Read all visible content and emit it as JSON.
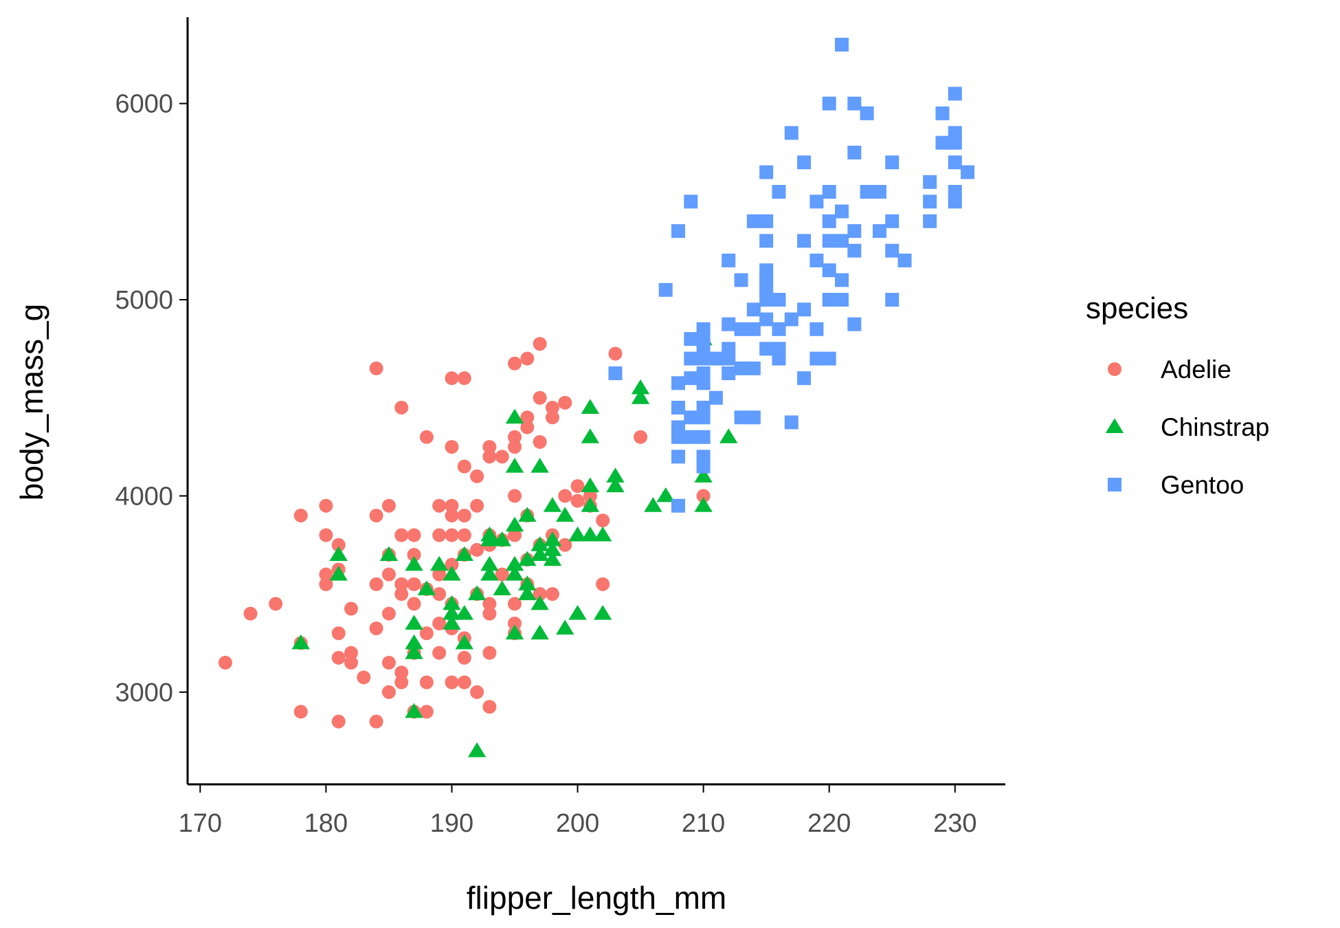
{
  "chart_data": {
    "type": "scatter",
    "xlabel": "flipper_length_mm",
    "ylabel": "body_mass_g",
    "xlim": [
      169,
      234
    ],
    "ylim": [
      2530,
      6440
    ],
    "xticks": [
      170,
      180,
      190,
      200,
      210,
      220,
      230
    ],
    "yticks": [
      3000,
      4000,
      5000,
      6000
    ],
    "grid": false,
    "legend": {
      "title": "species",
      "placement": "right"
    },
    "series": [
      {
        "name": "Adelie",
        "marker": "circle",
        "color": "#F8766D",
        "points": [
          [
            172,
            3150
          ],
          [
            174,
            3400
          ],
          [
            176,
            3450
          ],
          [
            178,
            3900
          ],
          [
            178,
            3250
          ],
          [
            178,
            2900
          ],
          [
            180,
            3950
          ],
          [
            180,
            3800
          ],
          [
            180,
            3600
          ],
          [
            180,
            3550
          ],
          [
            181,
            3750
          ],
          [
            181,
            3625
          ],
          [
            181,
            3300
          ],
          [
            181,
            3175
          ],
          [
            181,
            2850
          ],
          [
            182,
            3425
          ],
          [
            182,
            3200
          ],
          [
            182,
            3150
          ],
          [
            183,
            3075
          ],
          [
            184,
            4650
          ],
          [
            184,
            3900
          ],
          [
            184,
            3550
          ],
          [
            184,
            3325
          ],
          [
            184,
            2850
          ],
          [
            185,
            3950
          ],
          [
            185,
            3700
          ],
          [
            185,
            3600
          ],
          [
            185,
            3400
          ],
          [
            185,
            3150
          ],
          [
            185,
            3000
          ],
          [
            186,
            4450
          ],
          [
            186,
            3800
          ],
          [
            186,
            3500
          ],
          [
            186,
            3550
          ],
          [
            186,
            3100
          ],
          [
            186,
            3050
          ],
          [
            187,
            3800
          ],
          [
            187,
            3700
          ],
          [
            187,
            3550
          ],
          [
            187,
            3450
          ],
          [
            187,
            3200
          ],
          [
            187,
            2900
          ],
          [
            188,
            4300
          ],
          [
            188,
            3525
          ],
          [
            188,
            3300
          ],
          [
            188,
            3050
          ],
          [
            188,
            2900
          ],
          [
            189,
            3950
          ],
          [
            189,
            3800
          ],
          [
            189,
            3600
          ],
          [
            189,
            3500
          ],
          [
            189,
            3350
          ],
          [
            189,
            3200
          ],
          [
            190,
            4600
          ],
          [
            190,
            4250
          ],
          [
            190,
            3950
          ],
          [
            190,
            3900
          ],
          [
            190,
            3800
          ],
          [
            190,
            3650
          ],
          [
            190,
            3450
          ],
          [
            190,
            3325
          ],
          [
            190,
            3050
          ],
          [
            191,
            4600
          ],
          [
            191,
            4150
          ],
          [
            191,
            3900
          ],
          [
            191,
            3800
          ],
          [
            191,
            3700
          ],
          [
            191,
            3275
          ],
          [
            191,
            3175
          ],
          [
            191,
            3050
          ],
          [
            192,
            4100
          ],
          [
            192,
            3950
          ],
          [
            192,
            3725
          ],
          [
            192,
            3500
          ],
          [
            192,
            3000
          ],
          [
            193,
            4250
          ],
          [
            193,
            4200
          ],
          [
            193,
            3800
          ],
          [
            193,
            3750
          ],
          [
            193,
            3450
          ],
          [
            193,
            3400
          ],
          [
            193,
            3200
          ],
          [
            193,
            2925
          ],
          [
            194,
            4200
          ],
          [
            194,
            3775
          ],
          [
            194,
            3600
          ],
          [
            195,
            4675
          ],
          [
            195,
            4300
          ],
          [
            195,
            4250
          ],
          [
            195,
            4000
          ],
          [
            195,
            3800
          ],
          [
            195,
            3450
          ],
          [
            195,
            3350
          ],
          [
            195,
            3300
          ],
          [
            196,
            4700
          ],
          [
            196,
            4400
          ],
          [
            196,
            4350
          ],
          [
            196,
            3900
          ],
          [
            196,
            3675
          ],
          [
            196,
            3550
          ],
          [
            197,
            4775
          ],
          [
            197,
            4500
          ],
          [
            197,
            4275
          ],
          [
            197,
            3750
          ],
          [
            197,
            3500
          ],
          [
            198,
            4450
          ],
          [
            198,
            4400
          ],
          [
            198,
            3800
          ],
          [
            198,
            3500
          ],
          [
            199,
            4475
          ],
          [
            199,
            4000
          ],
          [
            199,
            3750
          ],
          [
            200,
            4050
          ],
          [
            200,
            3975
          ],
          [
            201,
            4000
          ],
          [
            201,
            3950
          ],
          [
            202,
            3875
          ],
          [
            202,
            3550
          ],
          [
            203,
            4725
          ],
          [
            205,
            4300
          ],
          [
            210,
            4000
          ]
        ]
      },
      {
        "name": "Chinstrap",
        "marker": "triangle",
        "color": "#00BA38",
        "points": [
          [
            178,
            3250
          ],
          [
            181,
            3700
          ],
          [
            181,
            3600
          ],
          [
            185,
            3700
          ],
          [
            187,
            3650
          ],
          [
            187,
            3350
          ],
          [
            187,
            3250
          ],
          [
            187,
            3200
          ],
          [
            187,
            2900
          ],
          [
            188,
            3525
          ],
          [
            189,
            3650
          ],
          [
            190,
            3600
          ],
          [
            190,
            3450
          ],
          [
            190,
            3400
          ],
          [
            190,
            3350
          ],
          [
            191,
            3700
          ],
          [
            191,
            3400
          ],
          [
            191,
            3250
          ],
          [
            192,
            3500
          ],
          [
            192,
            2700
          ],
          [
            193,
            3800
          ],
          [
            193,
            3775
          ],
          [
            193,
            3650
          ],
          [
            193,
            3600
          ],
          [
            194,
            3775
          ],
          [
            194,
            3525
          ],
          [
            195,
            4400
          ],
          [
            195,
            4150
          ],
          [
            195,
            3850
          ],
          [
            195,
            3650
          ],
          [
            195,
            3600
          ],
          [
            195,
            3300
          ],
          [
            196,
            3900
          ],
          [
            196,
            3675
          ],
          [
            196,
            3550
          ],
          [
            196,
            3500
          ],
          [
            197,
            4150
          ],
          [
            197,
            3750
          ],
          [
            197,
            3700
          ],
          [
            197,
            3450
          ],
          [
            197,
            3300
          ],
          [
            198,
            3950
          ],
          [
            198,
            3775
          ],
          [
            198,
            3725
          ],
          [
            198,
            3675
          ],
          [
            199,
            3900
          ],
          [
            199,
            3325
          ],
          [
            200,
            3800
          ],
          [
            200,
            3400
          ],
          [
            201,
            4450
          ],
          [
            201,
            4300
          ],
          [
            201,
            4050
          ],
          [
            201,
            3950
          ],
          [
            201,
            3800
          ],
          [
            202,
            3800
          ],
          [
            202,
            3400
          ],
          [
            203,
            4100
          ],
          [
            203,
            4050
          ],
          [
            205,
            4550
          ],
          [
            205,
            4500
          ],
          [
            206,
            3950
          ],
          [
            207,
            4000
          ],
          [
            210,
            4800
          ],
          [
            210,
            4100
          ],
          [
            210,
            3950
          ],
          [
            212,
            4300
          ]
        ]
      },
      {
        "name": "Gentoo",
        "marker": "square",
        "color": "#619CFF",
        "points": [
          [
            203,
            4625
          ],
          [
            207,
            5050
          ],
          [
            208,
            5350
          ],
          [
            208,
            4575
          ],
          [
            208,
            4450
          ],
          [
            208,
            4350
          ],
          [
            208,
            4300
          ],
          [
            208,
            4200
          ],
          [
            208,
            3950
          ],
          [
            209,
            5500
          ],
          [
            209,
            4800
          ],
          [
            209,
            4700
          ],
          [
            209,
            4600
          ],
          [
            209,
            4400
          ],
          [
            209,
            4300
          ],
          [
            210,
            4850
          ],
          [
            210,
            4800
          ],
          [
            210,
            4750
          ],
          [
            210,
            4700
          ],
          [
            210,
            4625
          ],
          [
            210,
            4575
          ],
          [
            210,
            4450
          ],
          [
            210,
            4400
          ],
          [
            210,
            4300
          ],
          [
            210,
            4200
          ],
          [
            210,
            4150
          ],
          [
            211,
            4700
          ],
          [
            211,
            4500
          ],
          [
            212,
            5200
          ],
          [
            212,
            4875
          ],
          [
            212,
            4750
          ],
          [
            212,
            4700
          ],
          [
            212,
            4625
          ],
          [
            213,
            5100
          ],
          [
            213,
            4850
          ],
          [
            213,
            4650
          ],
          [
            213,
            4400
          ],
          [
            214,
            5400
          ],
          [
            214,
            4950
          ],
          [
            214,
            4850
          ],
          [
            214,
            4650
          ],
          [
            214,
            4400
          ],
          [
            215,
            5650
          ],
          [
            215,
            5400
          ],
          [
            215,
            5300
          ],
          [
            215,
            5150
          ],
          [
            215,
            5100
          ],
          [
            215,
            5050
          ],
          [
            215,
            5000
          ],
          [
            215,
            4900
          ],
          [
            215,
            4750
          ],
          [
            216,
            5550
          ],
          [
            216,
            5000
          ],
          [
            216,
            4850
          ],
          [
            216,
            4750
          ],
          [
            216,
            4700
          ],
          [
            217,
            5850
          ],
          [
            217,
            4900
          ],
          [
            217,
            4375
          ],
          [
            218,
            5700
          ],
          [
            218,
            5300
          ],
          [
            218,
            4950
          ],
          [
            218,
            4600
          ],
          [
            219,
            5500
          ],
          [
            219,
            5200
          ],
          [
            219,
            4850
          ],
          [
            219,
            4700
          ],
          [
            220,
            6000
          ],
          [
            220,
            5550
          ],
          [
            220,
            5400
          ],
          [
            220,
            5300
          ],
          [
            220,
            5150
          ],
          [
            220,
            5000
          ],
          [
            220,
            4700
          ],
          [
            221,
            6300
          ],
          [
            221,
            5450
          ],
          [
            221,
            5300
          ],
          [
            221,
            5100
          ],
          [
            221,
            5000
          ],
          [
            222,
            6000
          ],
          [
            222,
            5750
          ],
          [
            222,
            5350
          ],
          [
            222,
            5250
          ],
          [
            222,
            4875
          ],
          [
            223,
            5950
          ],
          [
            223,
            5550
          ],
          [
            224,
            5550
          ],
          [
            224,
            5350
          ],
          [
            225,
            5700
          ],
          [
            225,
            5400
          ],
          [
            225,
            5250
          ],
          [
            225,
            5000
          ],
          [
            226,
            5200
          ],
          [
            228,
            5600
          ],
          [
            228,
            5500
          ],
          [
            228,
            5400
          ],
          [
            229,
            5950
          ],
          [
            229,
            5800
          ],
          [
            230,
            6050
          ],
          [
            230,
            5850
          ],
          [
            230,
            5800
          ],
          [
            230,
            5700
          ],
          [
            230,
            5550
          ],
          [
            230,
            5500
          ],
          [
            231,
            5650
          ]
        ]
      }
    ]
  }
}
